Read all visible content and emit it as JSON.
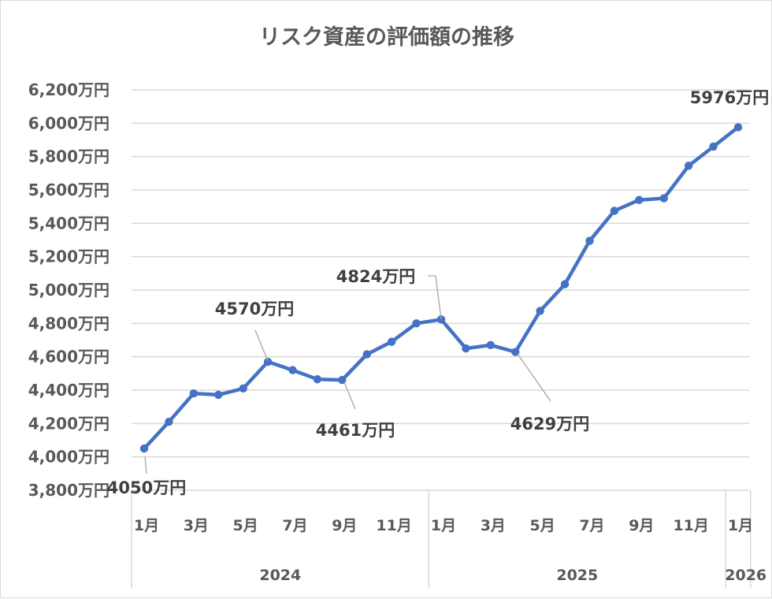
{
  "chart_data": {
    "type": "line",
    "title": "リスク資産の評価額の推移",
    "xlabel": "",
    "ylabel": "",
    "ylim": [
      3800,
      6200
    ],
    "y_ticks": [
      3800,
      4000,
      4200,
      4400,
      4600,
      4800,
      5000,
      5200,
      5400,
      5600,
      5800,
      6000,
      6200
    ],
    "y_tick_labels": [
      "3,800万円",
      "4,000万円",
      "4,200万円",
      "4,400万円",
      "4,600万円",
      "4,800万円",
      "5,000万円",
      "5,200万円",
      "5,400万円",
      "5,600万円",
      "5,800万円",
      "6,000万円",
      "6,200万円"
    ],
    "grid": true,
    "legend": "none",
    "categories": [
      "2024-1月",
      "2024-2月",
      "2024-3月",
      "2024-4月",
      "2024-5月",
      "2024-6月",
      "2024-7月",
      "2024-8月",
      "2024-9月",
      "2024-10月",
      "2024-11月",
      "2024-12月",
      "2025-1月",
      "2025-2月",
      "2025-3月",
      "2025-4月",
      "2025-5月",
      "2025-6月",
      "2025-7月",
      "2025-8月",
      "2025-9月",
      "2025-10月",
      "2025-11月",
      "2025-12月",
      "2026-1月"
    ],
    "x_tick_labels": [
      "1月",
      "3月",
      "5月",
      "7月",
      "9月",
      "11月",
      "1月",
      "3月",
      "5月",
      "7月",
      "9月",
      "11月",
      "1月"
    ],
    "year_groups": [
      {
        "label": "2024",
        "start": 0,
        "end": 11
      },
      {
        "label": "2025",
        "start": 12,
        "end": 23
      },
      {
        "label": "2026",
        "start": 24,
        "end": 24
      }
    ],
    "series": [
      {
        "name": "リスク資産評価額",
        "color": "#4472c4",
        "unit": "万円",
        "values": [
          4050,
          4210,
          4380,
          4372,
          4410,
          4570,
          4520,
          4465,
          4461,
          4615,
          4690,
          4800,
          4824,
          4650,
          4670,
          4629,
          4875,
          5035,
          5295,
          5475,
          5540,
          5550,
          5745,
          5860,
          5976
        ]
      }
    ],
    "annotations": [
      {
        "index": 0,
        "text": "4050万円"
      },
      {
        "index": 5,
        "text": "4570万円"
      },
      {
        "index": 8,
        "text": "4461万円"
      },
      {
        "index": 12,
        "text": "4824万円"
      },
      {
        "index": 15,
        "text": "4629万円"
      },
      {
        "index": 24,
        "text": "5976万円"
      }
    ]
  }
}
